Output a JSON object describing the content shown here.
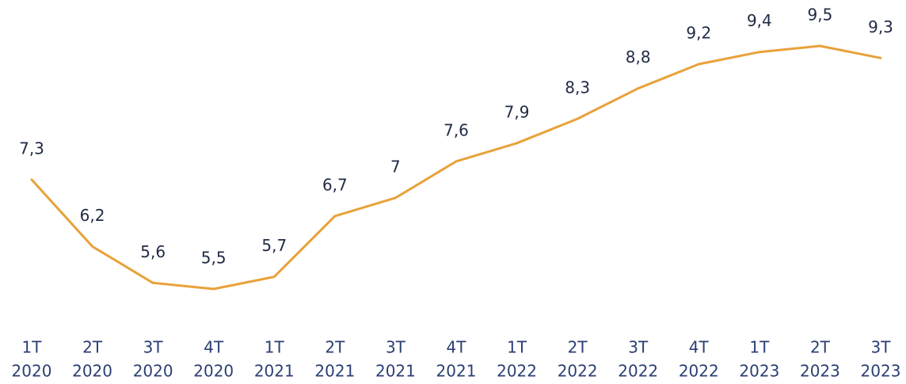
{
  "chart_data": {
    "type": "line",
    "color": "#e8a23a",
    "categories": [
      [
        "1T",
        "2020"
      ],
      [
        "2T",
        "2020"
      ],
      [
        "3T",
        "2020"
      ],
      [
        "4T",
        "2020"
      ],
      [
        "1T",
        "2021"
      ],
      [
        "2T",
        "2021"
      ],
      [
        "3T",
        "2021"
      ],
      [
        "4T",
        "2021"
      ],
      [
        "1T",
        "2022"
      ],
      [
        "2T",
        "2022"
      ],
      [
        "3T",
        "2022"
      ],
      [
        "4T",
        "2022"
      ],
      [
        "1T",
        "2023"
      ],
      [
        "2T",
        "2023"
      ],
      [
        "3T",
        "2023"
      ]
    ],
    "values": [
      7.3,
      6.2,
      5.6,
      5.5,
      5.7,
      6.7,
      7,
      7.6,
      7.9,
      8.3,
      8.8,
      9.2,
      9.4,
      9.5,
      9.3
    ],
    "value_labels": [
      "7,3",
      "6,2",
      "5,6",
      "5,5",
      "5,7",
      "6,7",
      "7",
      "7,6",
      "7,9",
      "8,3",
      "8,8",
      "9,2",
      "9,4",
      "9,5",
      "9,3"
    ]
  }
}
